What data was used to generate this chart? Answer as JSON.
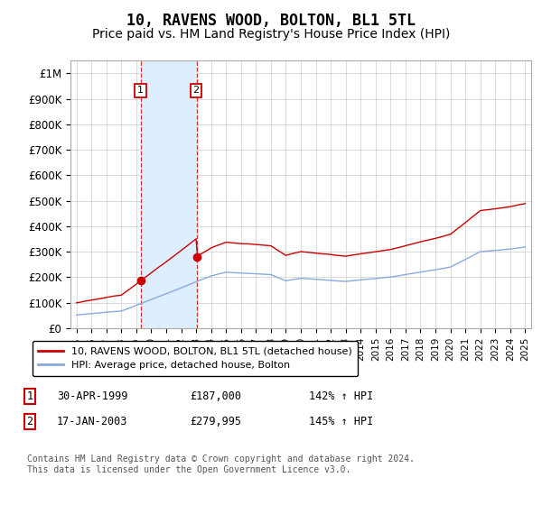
{
  "title": "10, RAVENS WOOD, BOLTON, BL1 5TL",
  "subtitle": "Price paid vs. HM Land Registry's House Price Index (HPI)",
  "title_fontsize": 12,
  "subtitle_fontsize": 10,
  "ylabel_ticks": [
    "£0",
    "£100K",
    "£200K",
    "£300K",
    "£400K",
    "£500K",
    "£600K",
    "£700K",
    "£800K",
    "£900K",
    "£1M"
  ],
  "ytick_values": [
    0,
    100000,
    200000,
    300000,
    400000,
    500000,
    600000,
    700000,
    800000,
    900000,
    1000000
  ],
  "ylim": [
    0,
    1050000
  ],
  "xlim_start": 1994.6,
  "xlim_end": 2025.4,
  "sale1_year": 1999.33,
  "sale1_price": 187000,
  "sale1_date_str": "30-APR-1999",
  "sale1_price_str": "£187,000",
  "sale1_hpi_str": "142% ↑ HPI",
  "sale2_year": 2003.04,
  "sale2_price": 279995,
  "sale2_date_str": "17-JAN-2003",
  "sale2_price_str": "£279,995",
  "sale2_hpi_str": "145% ↑ HPI",
  "line1_color": "#cc0000",
  "line2_color": "#88aadd",
  "shade_color": "#ddeeff",
  "marker_color": "#cc0000",
  "footnote": "Contains HM Land Registry data © Crown copyright and database right 2024.\nThis data is licensed under the Open Government Licence v3.0.",
  "legend1_label": "10, RAVENS WOOD, BOLTON, BL1 5TL (detached house)",
  "legend2_label": "HPI: Average price, detached house, Bolton",
  "background_color": "#ffffff",
  "grid_color": "#cccccc"
}
